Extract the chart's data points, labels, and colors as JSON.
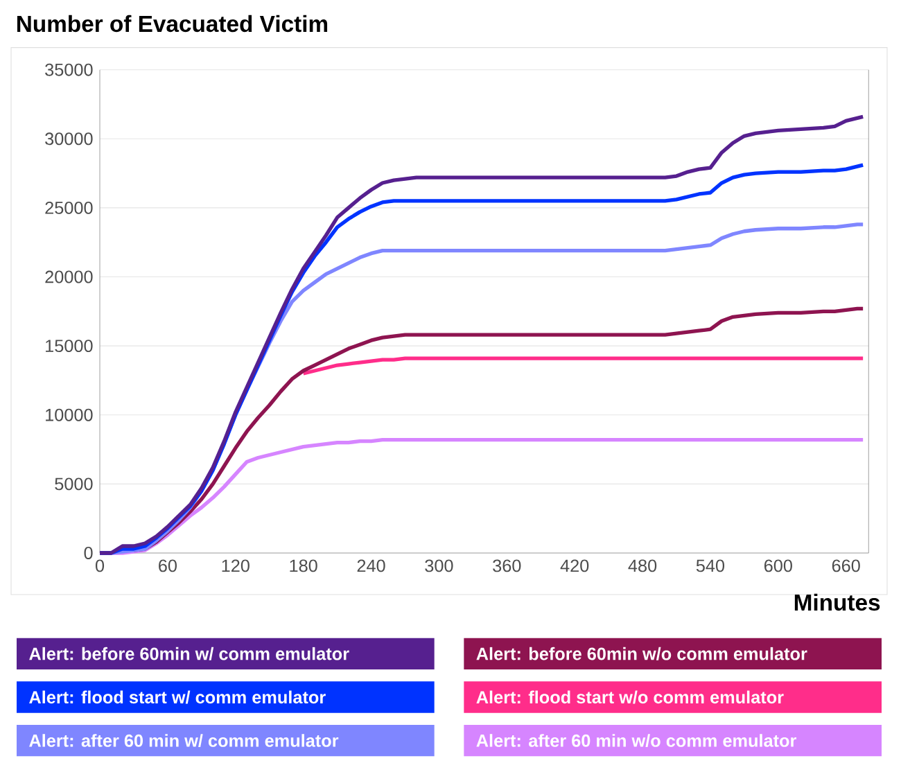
{
  "chart_data": {
    "type": "line",
    "title": "Number of Evacuated Victim",
    "xlabel": "Minutes",
    "x": [
      0,
      10,
      20,
      30,
      40,
      50,
      60,
      70,
      80,
      90,
      100,
      110,
      120,
      130,
      140,
      150,
      160,
      170,
      180,
      190,
      200,
      210,
      220,
      230,
      240,
      250,
      260,
      270,
      280,
      300,
      500,
      510,
      520,
      530,
      540,
      550,
      560,
      570,
      580,
      600,
      620,
      640,
      650,
      660,
      670,
      675
    ],
    "series": [
      {
        "name": "Alert: before 60min w/ comm emulator",
        "color": "#56208f",
        "values": [
          0,
          0,
          500,
          500,
          700,
          1200,
          1900,
          2700,
          3500,
          4700,
          6200,
          8100,
          10200,
          12000,
          13800,
          15600,
          17400,
          19100,
          20600,
          21800,
          23000,
          24300,
          25000,
          25700,
          26300,
          26800,
          27000,
          27100,
          27200,
          27200,
          27200,
          27300,
          27600,
          27800,
          27900,
          29000,
          29700,
          30200,
          30400,
          30600,
          30700,
          30800,
          30900,
          31300,
          31500,
          31600
        ]
      },
      {
        "name": "Alert: flood start  w/ comm emulator",
        "color": "#0033ff",
        "values": [
          0,
          0,
          300,
          300,
          500,
          1100,
          1800,
          2600,
          3400,
          4500,
          6000,
          7900,
          10000,
          11800,
          13600,
          15400,
          17200,
          18900,
          20300,
          21500,
          22500,
          23600,
          24200,
          24700,
          25100,
          25400,
          25500,
          25500,
          25500,
          25500,
          25500,
          25600,
          25800,
          26000,
          26100,
          26800,
          27200,
          27400,
          27500,
          27600,
          27600,
          27700,
          27700,
          27800,
          28000,
          28100
        ]
      },
      {
        "name": "Alert: after 60 min w/ comm emulator",
        "color": "#7f86ff",
        "values": [
          0,
          0,
          100,
          200,
          300,
          900,
          1600,
          2400,
          3300,
          4500,
          6000,
          8000,
          10000,
          11800,
          13500,
          15200,
          16800,
          18200,
          19000,
          19600,
          20200,
          20600,
          21000,
          21400,
          21700,
          21900,
          21900,
          21900,
          21900,
          21900,
          21900,
          22000,
          22100,
          22200,
          22300,
          22800,
          23100,
          23300,
          23400,
          23500,
          23500,
          23600,
          23600,
          23700,
          23800,
          23800
        ]
      },
      {
        "name": "Alert: before 60min w/o comm emulator",
        "color": "#8e1450",
        "values": [
          null,
          null,
          null,
          200,
          300,
          800,
          1500,
          2200,
          3000,
          3900,
          5000,
          6300,
          7600,
          8800,
          9800,
          10700,
          11700,
          12600,
          13200,
          13600,
          14000,
          14400,
          14800,
          15100,
          15400,
          15600,
          15700,
          15800,
          15800,
          15800,
          15800,
          15900,
          16000,
          16100,
          16200,
          16800,
          17100,
          17200,
          17300,
          17400,
          17400,
          17500,
          17500,
          17600,
          17700,
          17700
        ]
      },
      {
        "name": "Alert: flood start  w/o comm emulator",
        "color": "#ff2d8a",
        "x": [
          180,
          190,
          200,
          210,
          220,
          230,
          240,
          250,
          260,
          270,
          280,
          675
        ],
        "values": [
          13000,
          13200,
          13400,
          13600,
          13700,
          13800,
          13900,
          14000,
          14000,
          14100,
          14100,
          14100
        ]
      },
      {
        "name": "Alert: after 60 min w/o comm emulator",
        "color": "#d685ff",
        "values": [
          0,
          0,
          0,
          100,
          200,
          700,
          1300,
          2000,
          2700,
          3300,
          4000,
          4800,
          5700,
          6600,
          6900,
          7100,
          7300,
          7500,
          7700,
          7800,
          7900,
          8000,
          8000,
          8100,
          8100,
          8200,
          8200,
          8200,
          8200,
          8200,
          8200,
          8200,
          8200,
          8200,
          8200,
          8200,
          8200,
          8200,
          8200,
          8200,
          8200,
          8200,
          8200,
          8200,
          8200,
          8200
        ]
      }
    ],
    "xlim": [
      0,
      680
    ],
    "ylim": [
      0,
      35000
    ],
    "xticks": [
      0,
      60,
      120,
      180,
      240,
      300,
      360,
      420,
      480,
      540,
      600,
      660
    ],
    "yticks": [
      0,
      5000,
      10000,
      15000,
      20000,
      25000,
      30000,
      35000
    ],
    "grid": "y",
    "legend": "bottom",
    "marker": "none",
    "line_style": "solid"
  }
}
